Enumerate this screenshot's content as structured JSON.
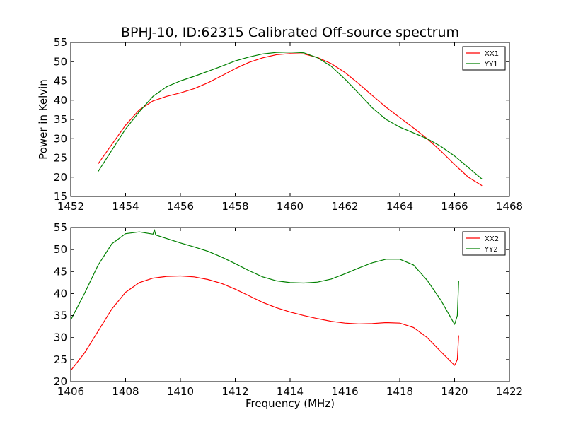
{
  "chart_data": [
    {
      "type": "line",
      "title": "BPHJ-10, ID:62315 Calibrated Off-source spectrum",
      "xlabel": "",
      "ylabel": "Power in Kelvin",
      "xlim": [
        1452,
        1468
      ],
      "ylim": [
        15,
        55
      ],
      "xticks": [
        1452,
        1454,
        1456,
        1458,
        1460,
        1462,
        1464,
        1466,
        1468
      ],
      "yticks": [
        15,
        20,
        25,
        30,
        35,
        40,
        45,
        50,
        55
      ],
      "legend_position": "top-right",
      "series": [
        {
          "name": "XX1",
          "color": "#ff0000",
          "x": [
            1453.0,
            1453.5,
            1454.0,
            1454.5,
            1455.0,
            1455.5,
            1456.0,
            1456.5,
            1457.0,
            1457.5,
            1458.0,
            1458.5,
            1459.0,
            1459.5,
            1460.0,
            1460.5,
            1461.0,
            1461.5,
            1462.0,
            1462.5,
            1463.0,
            1463.5,
            1464.0,
            1464.5,
            1465.0,
            1465.5,
            1466.0,
            1466.5,
            1467.0
          ],
          "y": [
            23.5,
            28.5,
            33.5,
            37.5,
            39.8,
            41.0,
            41.9,
            43.0,
            44.5,
            46.3,
            48.2,
            49.8,
            51.0,
            51.8,
            52.1,
            52.0,
            51.1,
            49.5,
            47.2,
            44.3,
            41.2,
            38.2,
            35.5,
            32.8,
            30.0,
            26.8,
            23.3,
            20.0,
            17.8
          ]
        },
        {
          "name": "YY1",
          "color": "#008000",
          "x": [
            1453.0,
            1453.5,
            1454.0,
            1454.5,
            1455.0,
            1455.5,
            1456.0,
            1456.5,
            1457.0,
            1457.5,
            1458.0,
            1458.5,
            1459.0,
            1459.5,
            1460.0,
            1460.5,
            1461.0,
            1461.5,
            1462.0,
            1462.5,
            1463.0,
            1463.5,
            1464.0,
            1464.5,
            1465.0,
            1465.5,
            1466.0,
            1466.5,
            1467.0
          ],
          "y": [
            21.5,
            27.0,
            32.5,
            37.0,
            41.0,
            43.5,
            45.0,
            46.2,
            47.5,
            48.8,
            50.2,
            51.2,
            52.0,
            52.4,
            52.5,
            52.3,
            51.0,
            48.8,
            45.5,
            41.8,
            38.0,
            35.0,
            33.0,
            31.5,
            30.0,
            28.0,
            25.5,
            22.5,
            19.5
          ]
        }
      ]
    },
    {
      "type": "line",
      "title": "",
      "xlabel": "Frequency (MHz)",
      "ylabel": "",
      "xlim": [
        1406,
        1422
      ],
      "ylim": [
        20,
        55
      ],
      "xticks": [
        1406,
        1408,
        1410,
        1412,
        1414,
        1416,
        1418,
        1420,
        1422
      ],
      "yticks": [
        20,
        25,
        30,
        35,
        40,
        45,
        50,
        55
      ],
      "legend_position": "top-right",
      "series": [
        {
          "name": "XX2",
          "color": "#ff0000",
          "x": [
            1406.0,
            1406.5,
            1407.0,
            1407.5,
            1408.0,
            1408.5,
            1409.0,
            1409.5,
            1410.0,
            1410.5,
            1411.0,
            1411.5,
            1412.0,
            1412.5,
            1413.0,
            1413.5,
            1414.0,
            1414.5,
            1415.0,
            1415.5,
            1416.0,
            1416.5,
            1417.0,
            1417.5,
            1418.0,
            1418.5,
            1419.0,
            1419.5,
            1420.0,
            1420.1,
            1420.15
          ],
          "y": [
            22.5,
            26.5,
            31.5,
            36.5,
            40.3,
            42.5,
            43.5,
            43.9,
            44.0,
            43.8,
            43.2,
            42.3,
            41.0,
            39.5,
            38.0,
            36.8,
            35.8,
            35.0,
            34.3,
            33.7,
            33.3,
            33.1,
            33.2,
            33.4,
            33.3,
            32.3,
            30.0,
            26.8,
            23.7,
            25.0,
            30.5
          ]
        },
        {
          "name": "YY2",
          "color": "#008000",
          "x": [
            1406.0,
            1406.5,
            1407.0,
            1407.5,
            1408.0,
            1408.5,
            1409.0,
            1409.05,
            1409.1,
            1409.5,
            1410.0,
            1410.5,
            1411.0,
            1411.5,
            1412.0,
            1412.5,
            1413.0,
            1413.5,
            1414.0,
            1414.5,
            1415.0,
            1415.5,
            1416.0,
            1416.5,
            1417.0,
            1417.5,
            1418.0,
            1418.5,
            1419.0,
            1419.5,
            1420.0,
            1420.1,
            1420.15
          ],
          "y": [
            34.0,
            40.0,
            46.5,
            51.3,
            53.6,
            54.0,
            53.5,
            54.5,
            53.3,
            52.5,
            51.5,
            50.6,
            49.6,
            48.3,
            46.8,
            45.2,
            43.8,
            42.9,
            42.5,
            42.4,
            42.6,
            43.3,
            44.5,
            45.8,
            47.0,
            47.8,
            47.8,
            46.5,
            43.0,
            38.5,
            33.0,
            35.0,
            42.8
          ]
        }
      ]
    }
  ]
}
